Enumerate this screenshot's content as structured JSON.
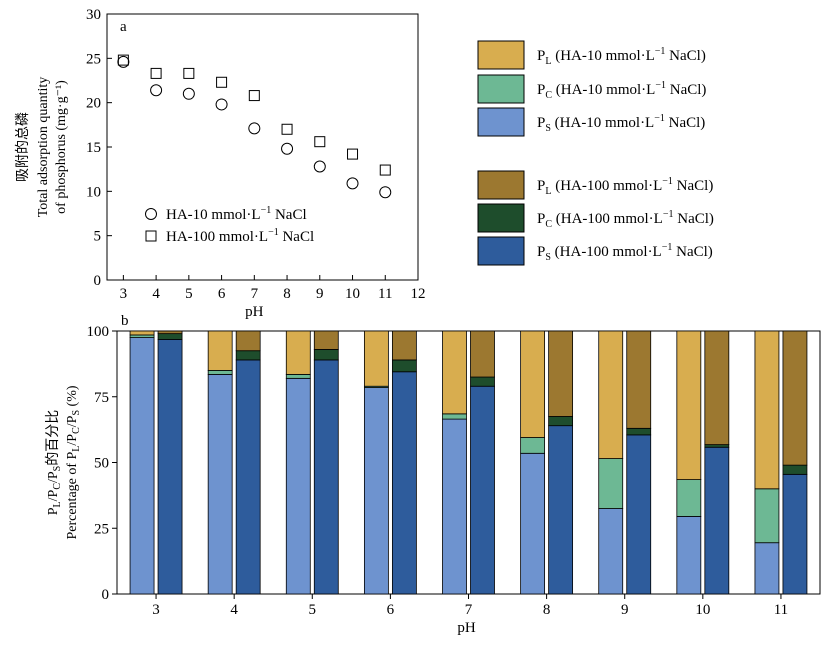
{
  "chart_data": [
    {
      "panel": "a",
      "type": "scatter",
      "ylabel_cn": "吸附的总磷",
      "ylabel_en_1": "Total adsorption quantity",
      "ylabel_en_2": "of phosphorus (mg·g⁻¹)",
      "xlabel": "pH",
      "xlim": [
        2.5,
        12
      ],
      "ylim": [
        0,
        30
      ],
      "xticks": [
        3,
        4,
        5,
        6,
        7,
        8,
        9,
        10,
        11,
        12
      ],
      "yticks": [
        0,
        5,
        10,
        15,
        20,
        25,
        30
      ],
      "series": [
        {
          "name": "HA-10 mmol·L⁻¹ NaCl",
          "marker": "circle",
          "x": [
            3,
            4,
            5,
            6,
            7,
            8,
            9,
            10,
            11
          ],
          "y": [
            24.6,
            21.4,
            21.0,
            19.8,
            17.1,
            14.8,
            12.8,
            10.9,
            9.9
          ]
        },
        {
          "name": "HA-100 mmol·L⁻¹ NaCl",
          "marker": "square",
          "x": [
            3,
            4,
            5,
            6,
            7,
            8,
            9,
            10,
            11
          ],
          "y": [
            24.8,
            23.3,
            23.3,
            22.3,
            20.8,
            17.0,
            15.6,
            14.2,
            12.4
          ]
        }
      ]
    },
    {
      "panel": "b",
      "type": "bar",
      "stacked": true,
      "ylabel_cn": "PL/PC/PS的百分比",
      "ylabel_en": "Percentage of PL/PC/PS (%)",
      "xlabel": "pH",
      "ylim": [
        0,
        100
      ],
      "yticks": [
        0,
        25,
        50,
        75,
        100
      ],
      "categories": [
        "3",
        "4",
        "5",
        "6",
        "7",
        "8",
        "9",
        "10",
        "11"
      ],
      "groups": [
        {
          "name": "HA-10 mmol·L⁻¹ NaCl",
          "P_S": [
            97.5,
            83.5,
            82.0,
            78.5,
            66.5,
            53.5,
            32.5,
            29.5,
            19.5
          ],
          "P_C": [
            1.0,
            1.5,
            1.5,
            0.5,
            2.0,
            6.0,
            19.0,
            14.0,
            20.5
          ],
          "P_L": [
            1.5,
            15.0,
            16.5,
            21.0,
            31.5,
            40.5,
            48.5,
            56.5,
            60.0
          ]
        },
        {
          "name": "HA-100 mmol·L⁻¹ NaCl",
          "P_S": [
            96.8,
            89.0,
            89.0,
            84.5,
            79.0,
            64.0,
            60.5,
            55.8,
            45.5
          ],
          "P_C": [
            2.2,
            3.5,
            4.0,
            4.5,
            3.5,
            3.5,
            2.5,
            1.0,
            3.5
          ],
          "P_L": [
            1.0,
            7.5,
            7.0,
            11.0,
            17.5,
            32.5,
            37.0,
            43.2,
            51.0
          ]
        }
      ],
      "colors": {
        "L10": "#d8ad4f",
        "C10": "#6db894",
        "S10": "#6e93cf",
        "L100": "#9c7830",
        "C100": "#1e4d2c",
        "S100": "#2e5c9c"
      }
    }
  ],
  "legend_b": [
    {
      "sym": "P",
      "sub": "L",
      "suffix": " (HA-10 mmol·L",
      "key": "L10"
    },
    {
      "sym": "P",
      "sub": "C",
      "suffix": " (HA-10 mmol·L",
      "key": "C10"
    },
    {
      "sym": "P",
      "sub": "S",
      "suffix": " (HA-10 mmol·L",
      "key": "S10"
    },
    {
      "sym": "P",
      "sub": "L",
      "suffix": " (HA-100 mmol·L",
      "key": "L100"
    },
    {
      "sym": "P",
      "sub": "C",
      "suffix": " (HA-100 mmol·L",
      "key": "C100"
    },
    {
      "sym": "P",
      "sub": "S",
      "suffix": "  (HA-100 mmol·L",
      "key": "S100"
    }
  ],
  "legend_a": [
    {
      "marker": "circle",
      "label": "HA-10 mmol·L"
    },
    {
      "marker": "square",
      "label": "HA-100 mmol·L"
    }
  ],
  "unit_tail": " NaCl)",
  "unit_tail_a": " NaCl",
  "sup": "−1"
}
